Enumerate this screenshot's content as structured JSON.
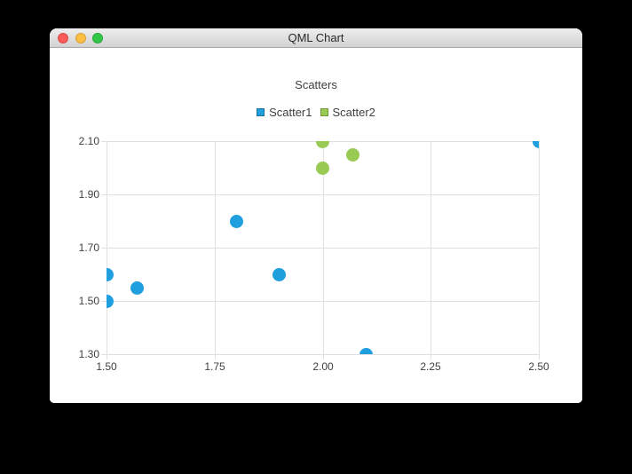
{
  "window": {
    "title": "QML Chart",
    "traffic_lights": {
      "close_color": "#fc5b57",
      "minimize_color": "#fdbe41",
      "zoom_color": "#33c748"
    }
  },
  "chart_data": {
    "type": "scatter",
    "title": "Scatters",
    "xlabel": "",
    "ylabel": "",
    "xlim": [
      1.5,
      2.5
    ],
    "ylim": [
      1.3,
      2.1
    ],
    "x_tick_labels": [
      "1.50",
      "1.75",
      "2.00",
      "2.25",
      "2.50"
    ],
    "y_tick_labels": [
      "2.10",
      "1.90",
      "1.70",
      "1.50",
      "1.30"
    ],
    "grid": true,
    "legend_position": "top-center",
    "marker_size_px": 15,
    "grid_color": "#e0e0e0",
    "series": [
      {
        "name": "Scatter1",
        "color": "#209fdf",
        "legend_border": "#1c6e9c",
        "points": [
          [
            1.5,
            1.5
          ],
          [
            1.5,
            1.6
          ],
          [
            1.57,
            1.55
          ],
          [
            1.8,
            1.8
          ],
          [
            1.9,
            1.6
          ],
          [
            2.1,
            1.3
          ],
          [
            2.5,
            2.1
          ]
        ]
      },
      {
        "name": "Scatter2",
        "color": "#99ca53",
        "legend_border": "#6f9639",
        "points": [
          [
            2.0,
            2.0
          ],
          [
            2.0,
            2.1
          ],
          [
            2.07,
            2.05
          ]
        ]
      }
    ]
  }
}
